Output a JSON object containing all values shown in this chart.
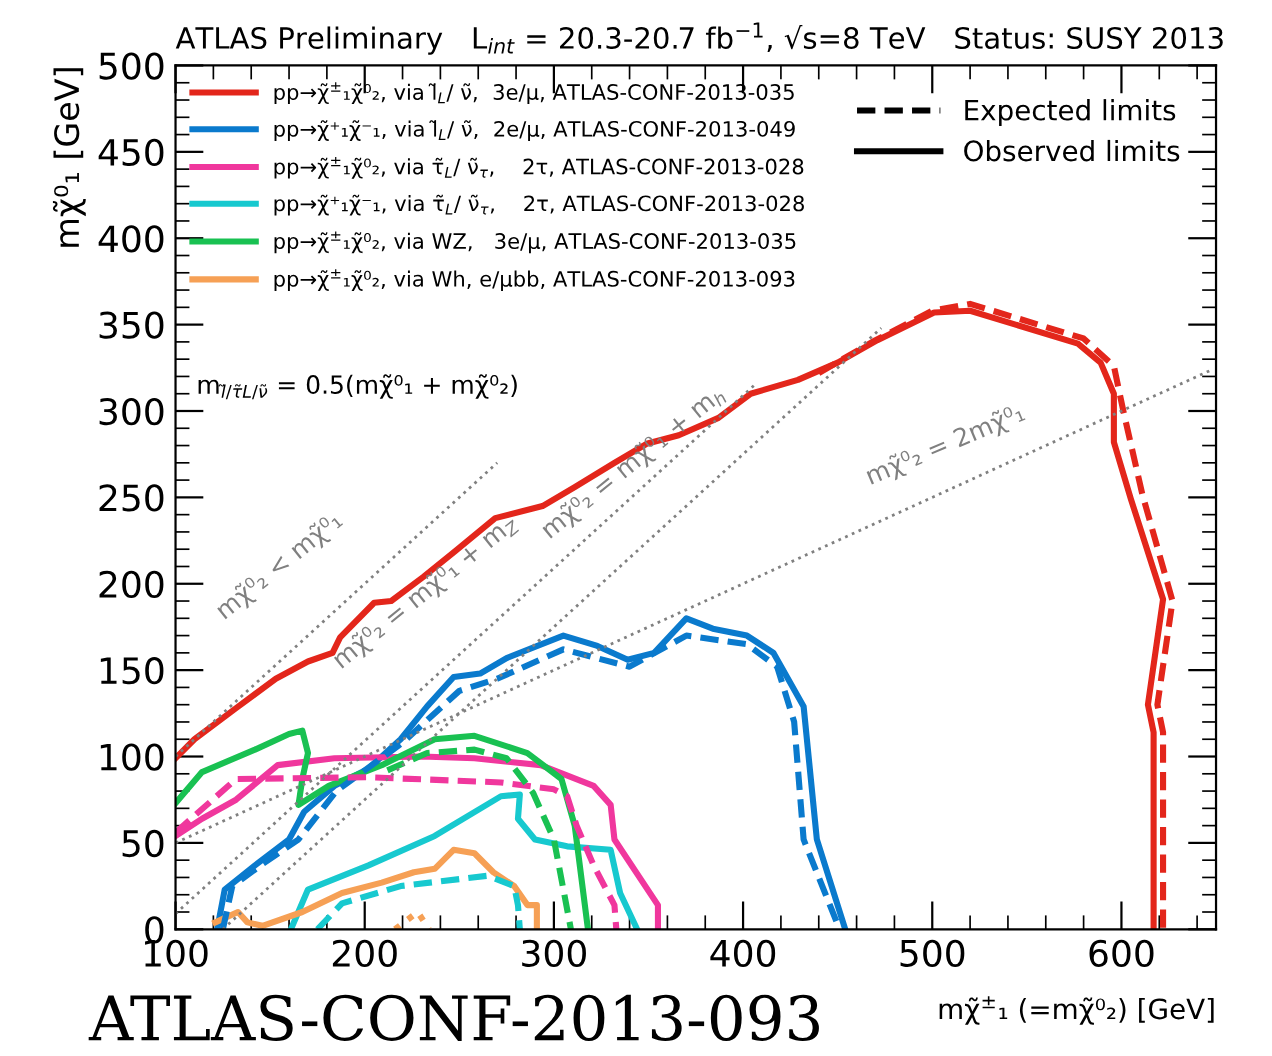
{
  "chart_data": {
    "type": "line",
    "title": "ATLAS Preliminary   L$_{int}$ = 20.3-20.7 fb$^{−1}$, √s=8 TeV   Status: SUSY 2013",
    "xlabel": "mχ̃$^{±}$₁ (=mχ̃⁰₂) [GeV]",
    "ylabel": "mχ̃⁰₁ [GeV]",
    "xlim": [
      100,
      650
    ],
    "ylim": [
      0,
      500
    ],
    "xticks": [
      100,
      200,
      300,
      400,
      500,
      600
    ],
    "yticks": [
      0,
      50,
      100,
      150,
      200,
      250,
      300,
      350,
      400,
      450,
      500
    ],
    "grid": false,
    "legend": "top left",
    "series": [
      {
        "name": "pp→χ̃$^{±}$₁χ̃⁰₂, via l̃$_{L}$/ ν̃,  3e/μ, ATLAS-CONF-2013-035",
        "color": "#e3261b",
        "line_style": "solid",
        "x": [
          100,
          110,
          132,
          153,
          170,
          183,
          187,
          205,
          214,
          231,
          248,
          269,
          294,
          311,
          332,
          349,
          366,
          387,
          404,
          429,
          450,
          471,
          501,
          520,
          577,
          589,
          596,
          596,
          605,
          622,
          614,
          617,
          617
        ],
        "values": [
          99,
          110,
          128,
          145,
          155,
          160,
          169,
          189,
          190,
          204,
          219,
          238,
          245,
          256,
          270,
          281,
          286,
          296,
          310,
          318,
          328,
          341,
          357,
          358,
          339,
          328,
          310,
          282,
          249,
          191,
          130,
          114,
          0
        ]
      },
      {
        "name": "pp→χ̃⁺₁χ̃⁻₁, via l̃$_{L}$/ ν̃,  2e/μ, ATLAS-CONF-2013-049",
        "color": "#0a7acd",
        "line_style": "solid",
        "x": [
          122,
          126,
          142,
          160,
          168,
          184,
          202,
          219,
          233,
          247,
          261,
          275,
          305,
          323,
          339,
          353,
          370,
          384,
          402,
          416,
          432,
          439,
          454
        ],
        "values": [
          0,
          23,
          37,
          52,
          68,
          83,
          93,
          110,
          129,
          146,
          148,
          157,
          170,
          164,
          156,
          160,
          180,
          174,
          170,
          160,
          129,
          52,
          0
        ]
      },
      {
        "name": "pp→χ̃$^{±}$₁χ̃⁰₂, via τ̃$_{L}$/ ν̃$_{τ}$,    2τ, ATLAS-CONF-2013-028",
        "color": "#f0379d",
        "line_style": "solid",
        "x": [
          100,
          114,
          132,
          154,
          184,
          230,
          258,
          293,
          321,
          330,
          332,
          355,
          355
        ],
        "values": [
          54,
          64,
          75,
          95,
          99,
          100,
          99,
          95,
          83,
          72,
          52,
          14,
          0
        ]
      },
      {
        "name": "pp→χ̃⁺₁χ̃⁻₁, via τ̃$_{L}$/ ν̃$_{τ}$,    2τ, ATLAS-CONF-2013-028",
        "color": "#17c9cf",
        "line_style": "solid",
        "x": [
          161,
          170,
          202,
          237,
          272,
          282,
          281,
          290,
          307,
          330,
          335,
          344
        ],
        "values": [
          0,
          23,
          37,
          54,
          77,
          78,
          64,
          52,
          48,
          46,
          21,
          0
        ]
      },
      {
        "name": "pp→χ̃$^{±}$₁χ̃⁰₂, via WZ,   3e/μ, ATLAS-CONF-2013-035",
        "color": "#19c152",
        "line_style": "solid",
        "x": [
          100,
          114,
          142,
          160,
          167,
          170,
          167,
          165,
          181,
          209,
          237,
          258,
          286,
          304,
          311,
          318
        ],
        "values": [
          73,
          91,
          104,
          113,
          115,
          102,
          87,
          72,
          83,
          95,
          110,
          112,
          102,
          87,
          60,
          0
        ]
      },
      {
        "name": "pp→χ̃$^{±}$₁χ̃⁰₂, via Wh, e/μbb, ATLAS-CONF-2013-093",
        "color": "#f6a055",
        "line_style": "solid",
        "x": [
          121,
          133,
          138,
          146,
          167,
          188,
          209,
          226,
          237,
          247,
          258,
          268,
          279,
          286,
          291,
          291
        ],
        "values": [
          4,
          10,
          4,
          2,
          10,
          21,
          27,
          33,
          35,
          46,
          44,
          33,
          25,
          14,
          14,
          0
        ]
      },
      {
        "color": "#e3261b",
        "line_style": "dashed",
        "x": [
          440,
          470,
          500,
          520,
          580,
          596,
          601,
          611,
          627,
          619,
          622,
          622
        ],
        "values": [
          322,
          341,
          358,
          362,
          342,
          326,
          300,
          252,
          190,
          130,
          114,
          0
        ]
      },
      {
        "color": "#0a7acd",
        "line_style": "dashed",
        "x": [
          125,
          130,
          145,
          165,
          185,
          220,
          250,
          270,
          305,
          340,
          370,
          402,
          418,
          427,
          432,
          451
        ],
        "values": [
          0,
          25,
          37,
          52,
          80,
          108,
          138,
          145,
          162,
          152,
          170,
          165,
          152,
          120,
          52,
          0
        ]
      },
      {
        "color": "#f0379d",
        "line_style": "dashed",
        "x": [
          100,
          132,
          202,
          272,
          300,
          307,
          312,
          321,
          332,
          333
        ],
        "values": [
          56,
          87,
          88,
          85,
          81,
          77,
          60,
          37,
          14,
          0
        ]
      },
      {
        "color": "#17c9cf",
        "line_style": "dashed",
        "x": [
          175,
          188,
          219,
          265,
          279,
          281,
          282
        ],
        "values": [
          0,
          15,
          25,
          31,
          25,
          14,
          0
        ]
      },
      {
        "color": "#19c152",
        "line_style": "dashed",
        "x": [
          212,
          233,
          258,
          275,
          289,
          300,
          309
        ],
        "values": [
          92,
          102,
          104,
          99,
          79,
          52,
          0
        ]
      },
      {
        "color": "#f6a055",
        "line_style": "dotted",
        "x": [
          216,
          228,
          234
        ],
        "values": [
          0,
          10,
          0
        ]
      },
      {
        "color": "#808080",
        "line_style": "dotted",
        "x": [
          100,
          270
        ],
        "values": [
          100,
          270
        ]
      },
      {
        "color": "#808080",
        "line_style": "dotted",
        "x": [
          100,
          406
        ],
        "values": [
          9,
          315
        ]
      },
      {
        "color": "#808080",
        "line_style": "dotted",
        "x": [
          125,
          473
        ],
        "values": [
          0,
          348
        ]
      },
      {
        "color": "#808080",
        "line_style": "dotted",
        "x": [
          100,
          648
        ],
        "values": [
          50,
          324
        ]
      }
    ],
    "annotations": [
      "Expected limits",
      "Observed limits",
      "m$_{l̃/τ̃L/ν̃}$ = 0.5(mχ̃⁰₁ + mχ̃⁰₂)",
      "mχ̃⁰₂ < mχ̃⁰₁",
      "mχ̃⁰₂ = mχ̃⁰₁ + m$_{Z}$",
      "mχ̃⁰₂ = mχ̃⁰₁ + m$_{h}$",
      "mχ̃⁰₂ = 2mχ̃⁰₁",
      "ATLAS-CONF-2013-093"
    ]
  }
}
